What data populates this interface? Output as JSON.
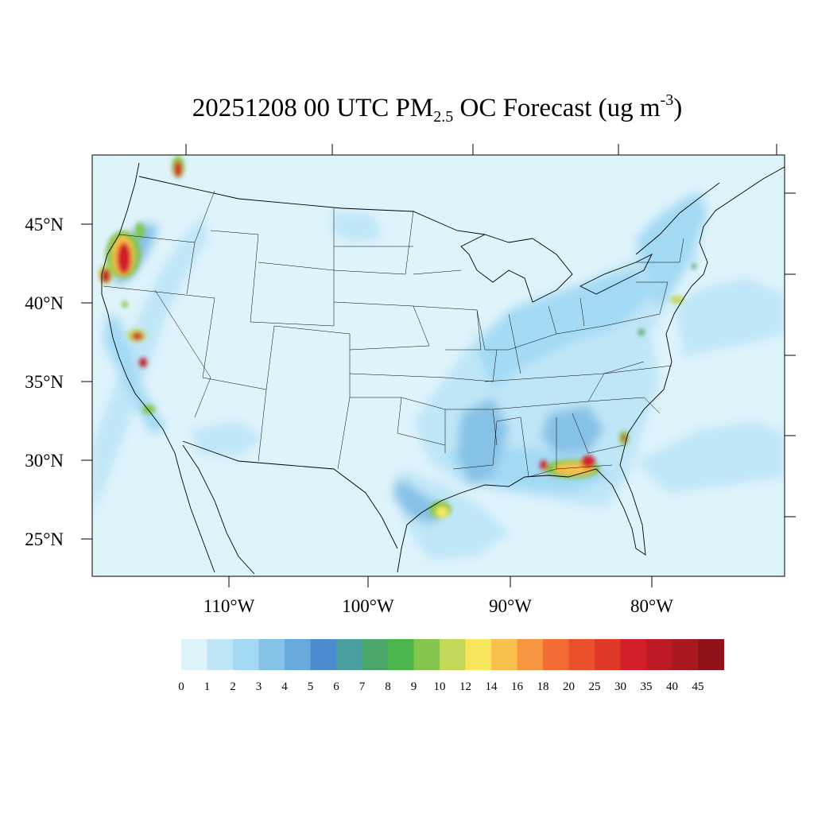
{
  "title": {
    "prefix": "20251208 00 UTC PM",
    "subscript": "2.5",
    "middle": " OC Forecast (ug m",
    "superscript": "-3",
    "suffix": ")"
  },
  "map": {
    "lat_labels": [
      "45°N",
      "40°N",
      "35°N",
      "30°N",
      "25°N"
    ],
    "lon_labels": [
      "110°W",
      "100°W",
      "90°W",
      "80°W"
    ]
  },
  "colorbar": {
    "labels": [
      "0",
      "1",
      "2",
      "3",
      "4",
      "5",
      "6",
      "7",
      "8",
      "9",
      "10",
      "12",
      "14",
      "16",
      "18",
      "20",
      "25",
      "30",
      "35",
      "40",
      "45"
    ],
    "colors": [
      "#dff3fb",
      "#bfe6f7",
      "#a3d9f4",
      "#86c1e6",
      "#68a9dc",
      "#4a8ccd",
      "#4a9ea0",
      "#4aa56a",
      "#4ab54a",
      "#84c54e",
      "#c3d758",
      "#f7e65b",
      "#f9bf4b",
      "#f8963f",
      "#f46b33",
      "#ea5029",
      "#df3a27",
      "#d21f2a",
      "#be1a26",
      "#a9181f",
      "#8e141a"
    ]
  },
  "chart_data": {
    "type": "heatmap",
    "title": "20251208 00 UTC PM2.5 OC Forecast (ug m-3)",
    "xlabel": "",
    "ylabel": "",
    "lat_ticks": [
      45,
      40,
      35,
      30,
      25
    ],
    "lon_ticks": [
      -110,
      -100,
      -90,
      -80
    ],
    "levels": [
      0,
      1,
      2,
      3,
      4,
      5,
      6,
      7,
      8,
      9,
      10,
      12,
      14,
      16,
      18,
      20,
      25,
      30,
      35,
      40,
      45
    ],
    "hotspots": [
      {
        "lon": -123.6,
        "lat": 42.8,
        "value": 45
      },
      {
        "lon": -124.2,
        "lat": 41.5,
        "value": 40
      },
      {
        "lon": -121.6,
        "lat": 37.8,
        "value": 40
      },
      {
        "lon": -121.2,
        "lat": 36.2,
        "value": 35
      },
      {
        "lon": -115.6,
        "lat": 48.3,
        "value": 40
      },
      {
        "lon": -94.9,
        "lat": 26.7,
        "value": 16
      },
      {
        "lon": -86.5,
        "lat": 29.4,
        "value": 18
      },
      {
        "lon": -84.4,
        "lat": 29.8,
        "value": 45
      },
      {
        "lon": -81.6,
        "lat": 31.4,
        "value": 35
      },
      {
        "lon": -88.0,
        "lat": 29.6,
        "value": 35
      },
      {
        "lon": -122.7,
        "lat": 33.2,
        "value": 8
      },
      {
        "lon": -76.6,
        "lat": 39.9,
        "value": 10
      }
    ]
  }
}
